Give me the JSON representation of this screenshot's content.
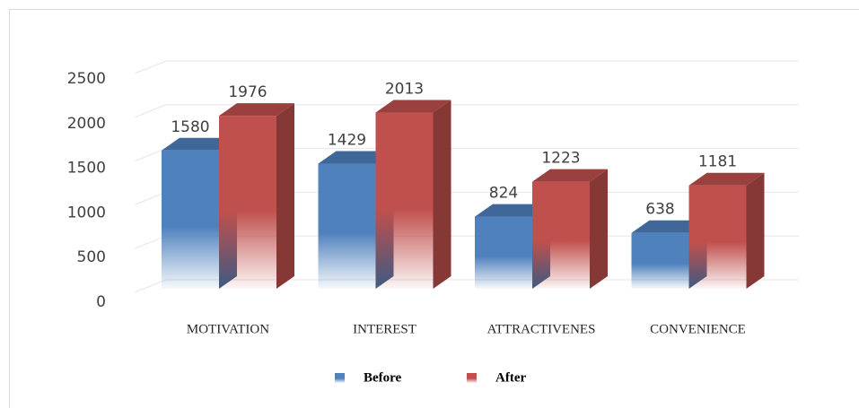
{
  "chart_data": {
    "type": "bar3d",
    "categories": [
      "MOTIVATION",
      "INTEREST",
      "ATTRACTIVENES",
      "CONVENIENCE"
    ],
    "series": [
      {
        "name": "Before",
        "color": "#4f81bd",
        "values": [
          1580,
          1429,
          824,
          638
        ]
      },
      {
        "name": "After",
        "color": "#c0504d",
        "values": [
          1976,
          2013,
          1223,
          1181
        ]
      }
    ],
    "ylim": [
      0,
      2500
    ],
    "yticks": [
      0,
      500,
      1000,
      1500,
      2000,
      2500
    ],
    "grid": true,
    "legend": "bottom"
  }
}
